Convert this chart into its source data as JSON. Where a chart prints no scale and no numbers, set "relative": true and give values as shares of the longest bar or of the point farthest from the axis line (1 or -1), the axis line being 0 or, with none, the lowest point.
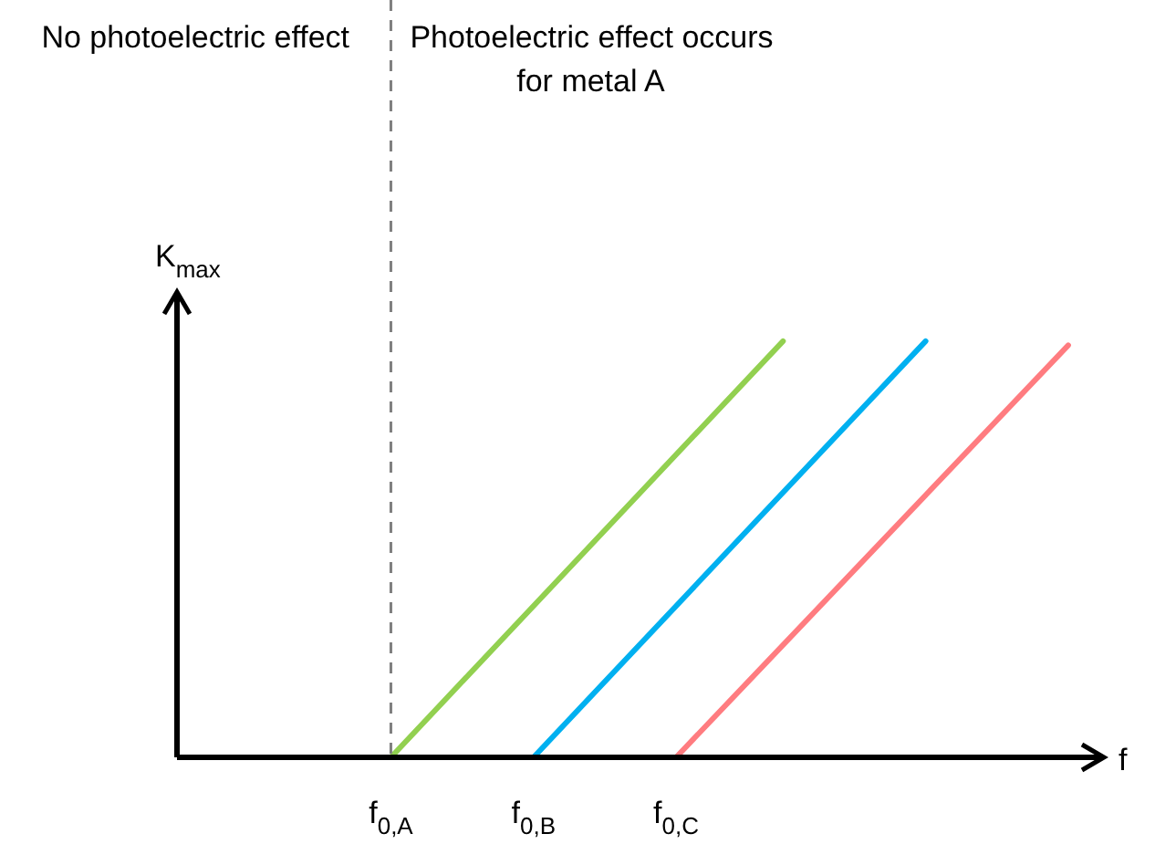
{
  "chart_data": {
    "type": "line",
    "relative": true,
    "xlabel": "f",
    "ylabel": "K$_{max}$",
    "categories": [
      null,
      null,
      null,
      null,
      null,
      null,
      "f$_{0,A}$",
      null,
      null,
      null,
      "f$_{0,B}$",
      null,
      null,
      null,
      "f$_{0,C}$",
      null,
      null,
      null,
      null,
      null,
      null,
      null,
      null,
      null,
      null,
      null,
      null
    ],
    "series": [
      {
        "color": "#92d050",
        "values": [
          null,
          null,
          null,
          null,
          null,
          null,
          0,
          null,
          null,
          null,
          null,
          null,
          null,
          null,
          null,
          null,
          null,
          1,
          null,
          null,
          null,
          null,
          null,
          null,
          null,
          null,
          null
        ]
      },
      {
        "color": "#00b0f0",
        "values": [
          null,
          null,
          null,
          null,
          null,
          null,
          null,
          null,
          null,
          null,
          0,
          null,
          null,
          null,
          null,
          null,
          null,
          null,
          null,
          null,
          null,
          1,
          null,
          null,
          null,
          null,
          null
        ]
      },
      {
        "color": "#ff7c80",
        "values": [
          null,
          null,
          null,
          null,
          null,
          null,
          null,
          null,
          null,
          null,
          null,
          null,
          null,
          null,
          0,
          null,
          null,
          null,
          null,
          null,
          null,
          null,
          null,
          null,
          null,
          0.99,
          null
        ]
      }
    ],
    "ref_lines": [
      {
        "axis": "x",
        "value": "f$_{0,A}$",
        "color": "#7f7f7f",
        "line_style": "dashed"
      }
    ],
    "annotations": [
      "No photoelectric effect",
      "Photoelectric effect occurs for metal A"
    ],
    "legend": false
  }
}
